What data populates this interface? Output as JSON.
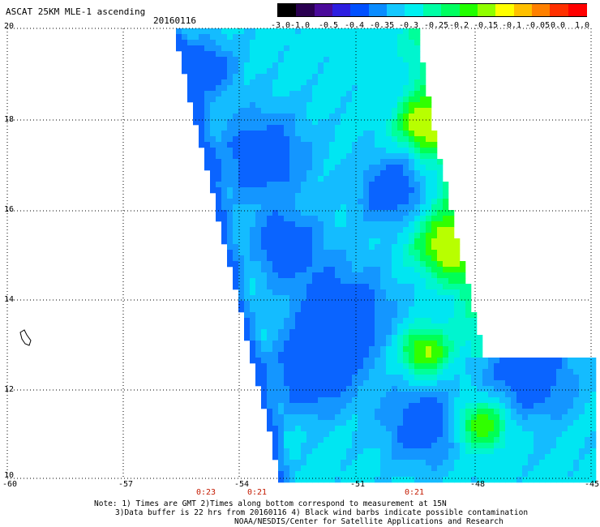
{
  "title": "ASCAT 25KM MLE-1 ascending",
  "date": "20160116",
  "colorbar": {
    "labels": [
      "-3.0",
      "-1.0",
      "-0.5",
      "-0.4",
      "-0.35",
      "-0.3",
      "-0.25",
      "-0.2",
      "-0.15",
      "-0.1",
      "-0.05",
      "0.0",
      "1.0"
    ],
    "colors": [
      "#000000",
      "#2a0050",
      "#4a0a9a",
      "#2d1ee0",
      "#0050ff",
      "#0a8cff",
      "#14c8ff",
      "#00f0f0",
      "#00ffa5",
      "#00ff60",
      "#20ff00",
      "#90ff00",
      "#ffff00",
      "#ffc000",
      "#ff8000",
      "#ff3000",
      "#ff0000"
    ]
  },
  "map": {
    "lat_labels": [
      "20",
      "18",
      "16",
      "14",
      "12",
      "10"
    ],
    "lon_labels": [
      "-60",
      "-57",
      "-54",
      "-51",
      "-48",
      "-45"
    ],
    "time_labels": [
      "0:23",
      "0:21",
      "0:21"
    ]
  },
  "notes": {
    "line1": "Note: 1) Times are GMT 2)Times along bottom correspond to measurement at 15N",
    "line2": "3)Data buffer is 22 hrs from 20160116 4) Black wind barbs indicate possible contamination",
    "line3": "NOAA/NESDIS/Center for Satellite Applications and Research"
  }
}
